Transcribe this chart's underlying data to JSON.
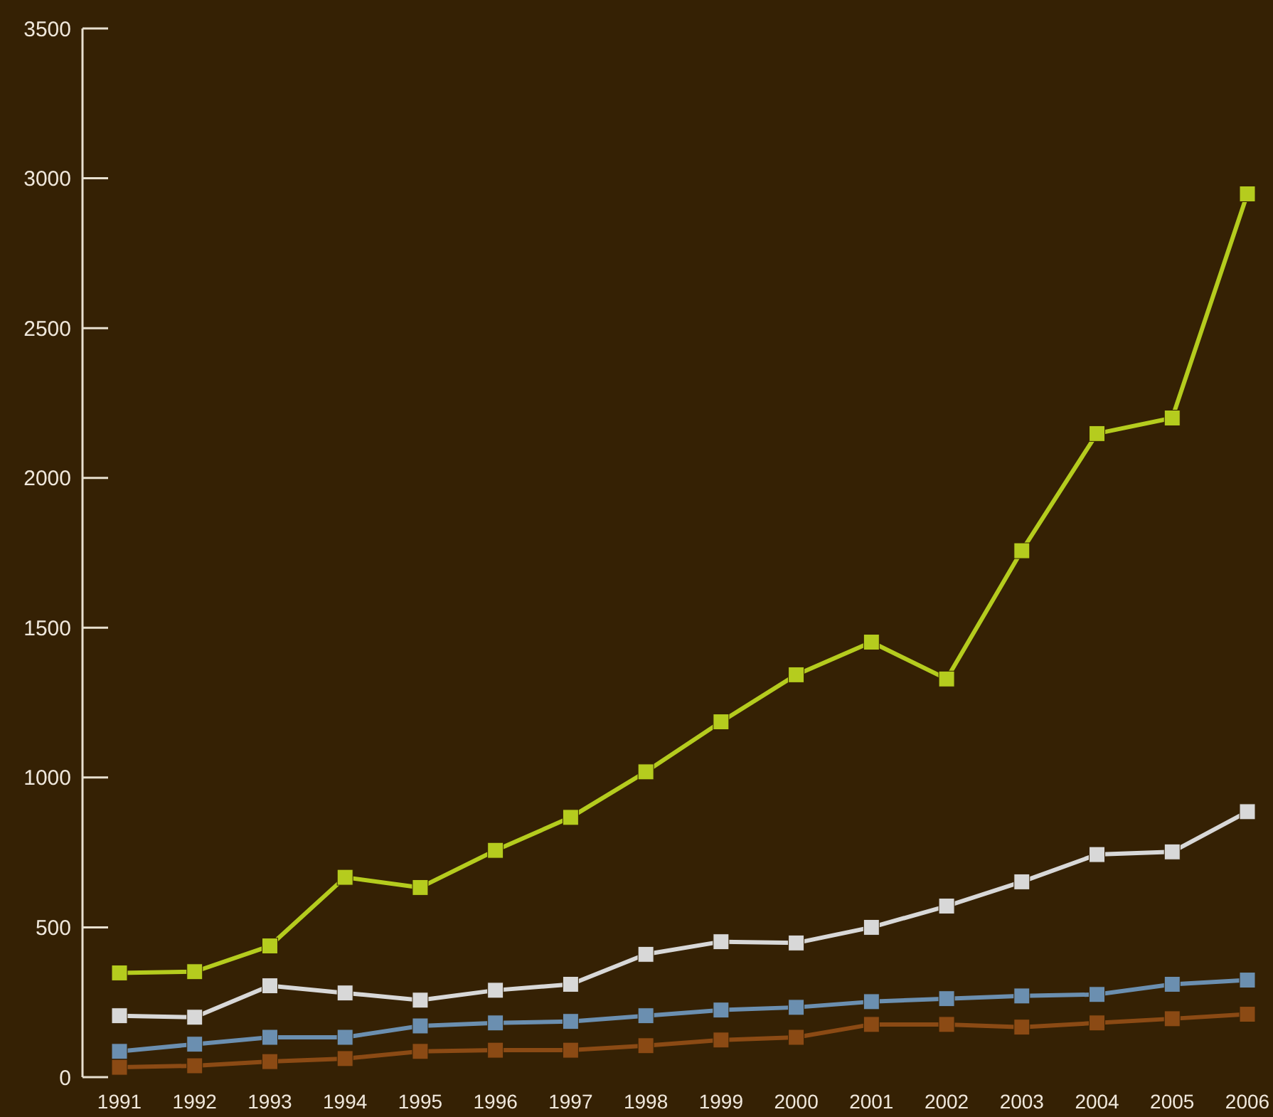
{
  "chart_data": {
    "type": "line",
    "categories": [
      "1991",
      "1992",
      "1993",
      "1994",
      "1995",
      "1996",
      "1997",
      "1998",
      "1999",
      "2000",
      "2001",
      "2002",
      "2003",
      "2004",
      "2005",
      "2006"
    ],
    "ylim": [
      0,
      3500
    ],
    "yticks": [
      0,
      500,
      1000,
      1500,
      2000,
      2500,
      3000,
      3500
    ],
    "grid": false,
    "marker": "square",
    "line_style": "solid",
    "series": [
      {
        "color": "#b5cc1e",
        "values": [
          348,
          352,
          438,
          667,
          633,
          757,
          867,
          1019,
          1186,
          1343,
          1452,
          1329,
          1757,
          2148,
          2200,
          2948
        ]
      },
      {
        "color": "#d8d8d8",
        "values": [
          205,
          200,
          305,
          281,
          257,
          290,
          310,
          410,
          452,
          448,
          500,
          571,
          652,
          743,
          752,
          886
        ]
      },
      {
        "color": "#6b8fb0",
        "values": [
          86,
          110,
          133,
          133,
          171,
          181,
          186,
          205,
          224,
          233,
          252,
          262,
          271,
          276,
          310,
          324
        ]
      },
      {
        "color": "#8b4a14",
        "values": [
          33,
          38,
          52,
          62,
          86,
          90,
          90,
          105,
          124,
          133,
          176,
          176,
          167,
          181,
          195,
          210
        ]
      }
    ]
  }
}
